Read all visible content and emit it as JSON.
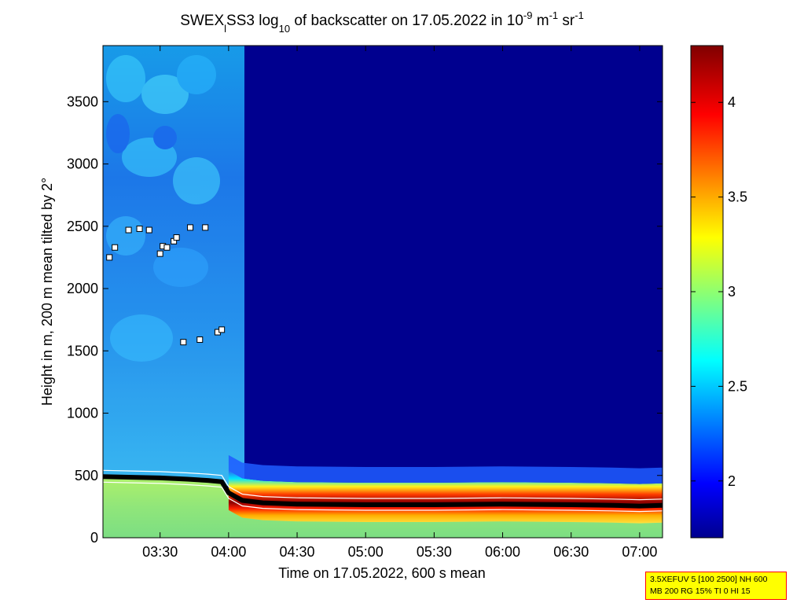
{
  "title": {
    "prefix": "SWEX",
    "sub1": "l",
    "mid": "SS3 log",
    "sub2": "10",
    "after": " of backscatter on 17.05.2022 in 10",
    "sup1": "-9",
    "unit1": " m",
    "sup2": "-1",
    "unit2": " sr",
    "sup3": "-1"
  },
  "param_box": {
    "line1": "3.5XEFUV 5 [100 2500] NH 600",
    "line2": "MB 200 RG 15% TI 0 HI 15"
  },
  "colors": {
    "cloud_marker_fill": "#ffffff",
    "cloud_marker_edge": "#000000",
    "boundary_line": "#000000",
    "boundary_highlight": "#ffffff"
  },
  "chart_data": {
    "type": "heatmap",
    "xlabel": "Time on 17.05.2022, 600 s mean",
    "ylabel": "Height in m, 200 m mean tilted by 2°",
    "x_start": "03:05",
    "x_end": "07:10",
    "xlim_hours": [
      3.083,
      7.167
    ],
    "ylim": [
      0,
      3950
    ],
    "x_ticks": [
      "03:30",
      "04:00",
      "04:30",
      "05:00",
      "05:30",
      "06:00",
      "06:30",
      "07:00"
    ],
    "x_tick_hours": [
      3.5,
      4.0,
      4.5,
      5.0,
      5.5,
      6.0,
      6.5,
      7.0
    ],
    "y_ticks": [
      0,
      500,
      1000,
      1500,
      2000,
      2500,
      3000,
      3500
    ],
    "y_tick_labels": [
      "0",
      "500",
      "1000",
      "1500",
      "2000",
      "2500",
      "3000",
      "3500"
    ],
    "colorbar": {
      "range": [
        1.7,
        4.3
      ],
      "ticks": [
        2,
        2.5,
        3,
        3.5,
        4
      ],
      "tick_labels": [
        "2",
        "2.5",
        "3",
        "3.5",
        "4"
      ],
      "colormap": "jet"
    },
    "boundary_layer_height": {
      "hours": [
        3.083,
        3.3,
        3.5,
        3.7,
        3.85,
        3.95,
        4.0,
        4.1,
        4.25,
        4.5,
        5.0,
        5.5,
        6.0,
        6.5,
        6.8,
        7.0,
        7.167
      ],
      "heights": [
        490,
        485,
        480,
        470,
        460,
        450,
        360,
        300,
        280,
        270,
        265,
        265,
        270,
        265,
        260,
        255,
        260
      ]
    },
    "cloud_markers": {
      "hours": [
        3.13,
        3.17,
        3.27,
        3.35,
        3.42,
        3.5,
        3.52,
        3.55,
        3.6,
        3.62,
        3.67,
        3.72,
        3.79,
        3.83,
        3.92,
        3.95
      ],
      "heights": [
        2250,
        2330,
        2470,
        2480,
        2470,
        2280,
        2340,
        2330,
        2380,
        2410,
        1570,
        2490,
        1590,
        2490,
        1650,
        1670
      ]
    }
  }
}
